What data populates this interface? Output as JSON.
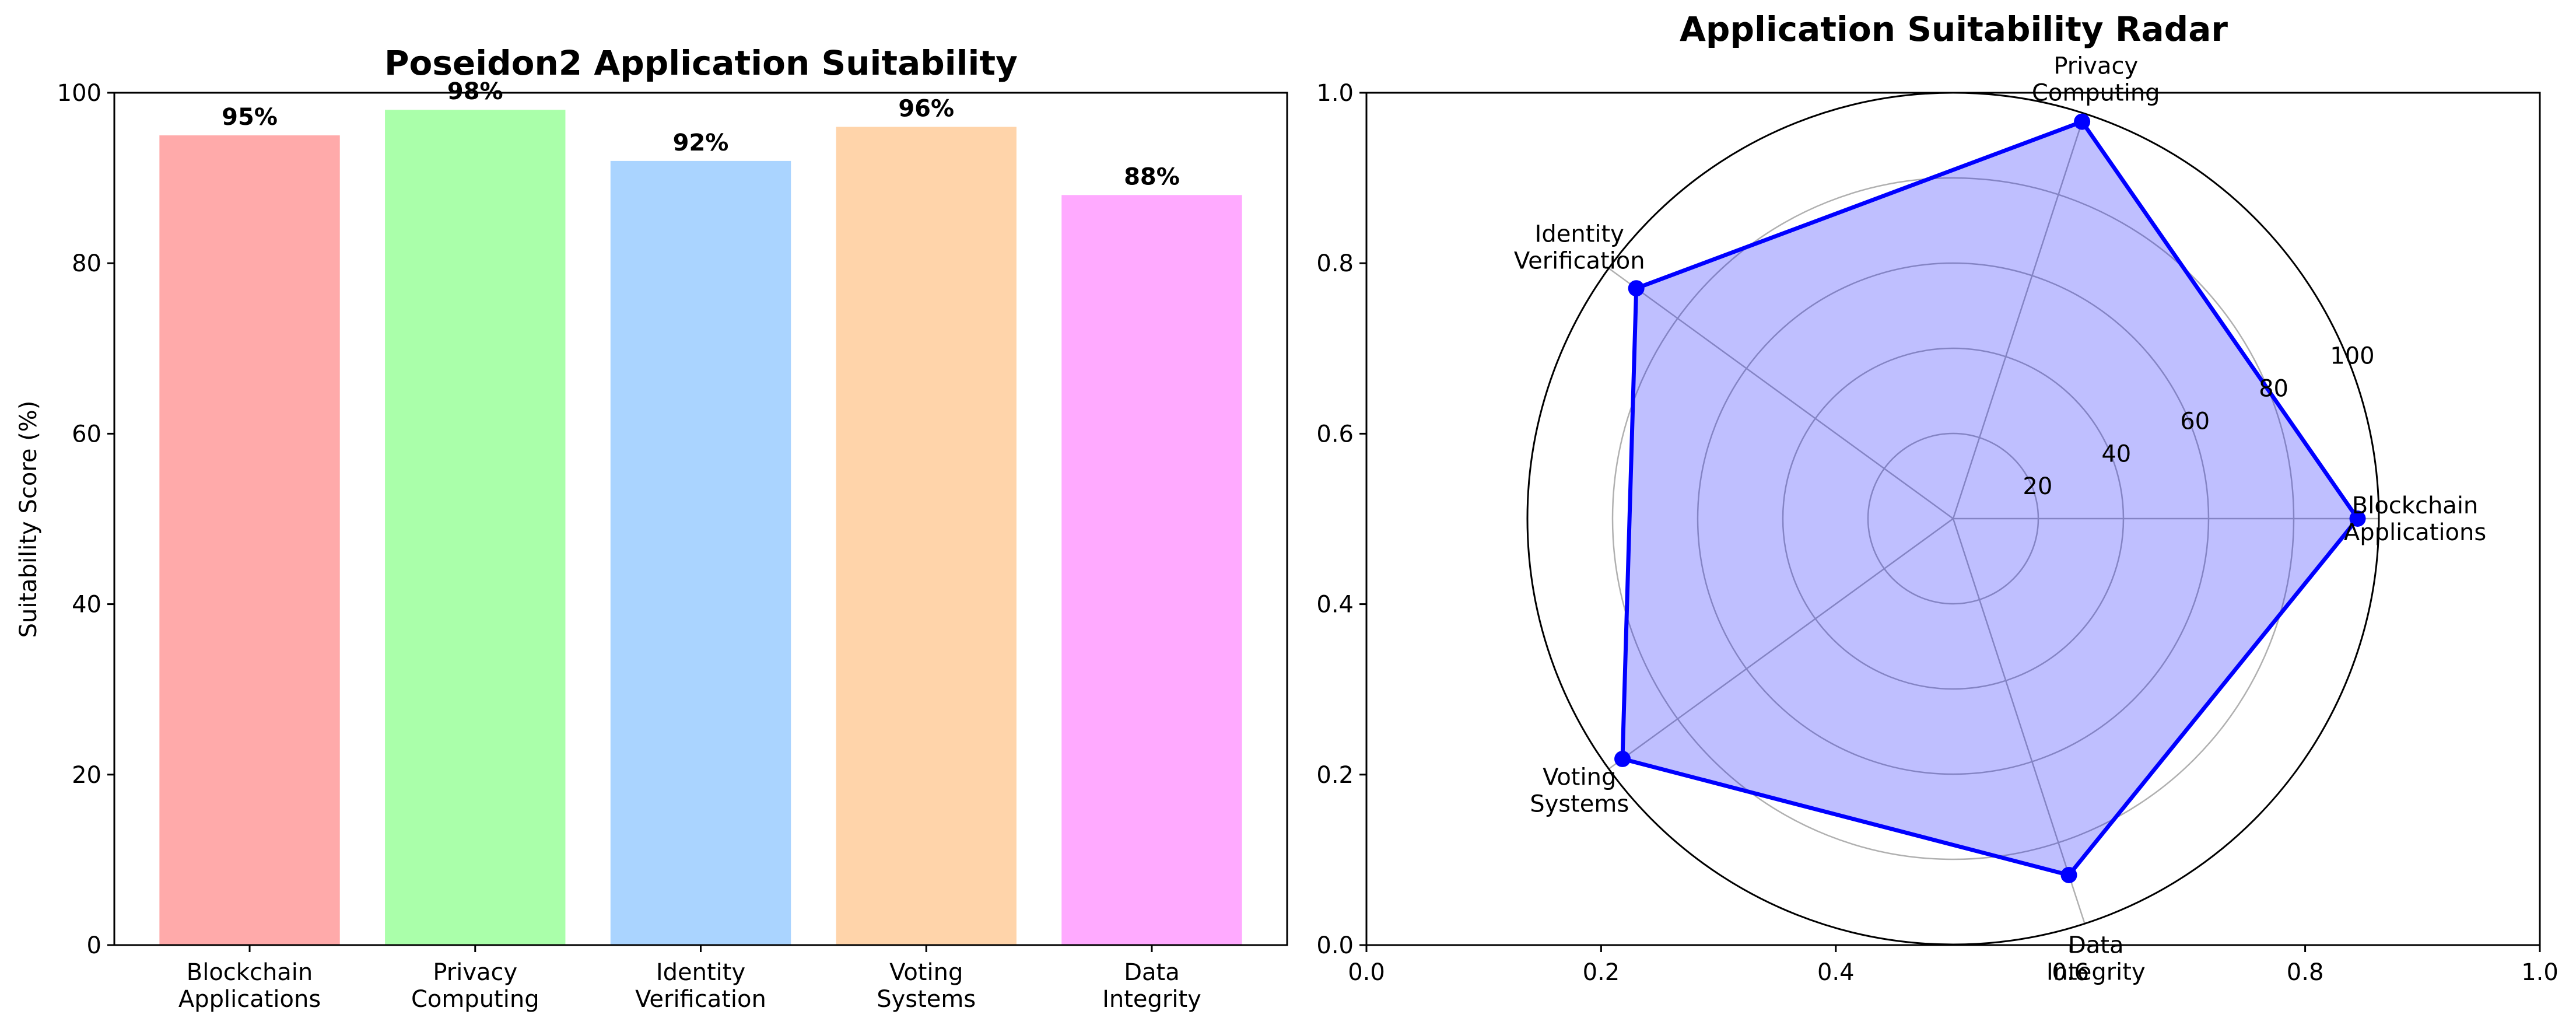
{
  "chart_data": [
    {
      "type": "bar",
      "title": "Poseidon2 Application Suitability",
      "xlabel": "",
      "ylabel": "Suitability Score (%)",
      "ylim": [
        0,
        100
      ],
      "yticks": [
        "0",
        "20",
        "40",
        "60",
        "80",
        "100"
      ],
      "categories": [
        [
          "Blockchain",
          "Applications"
        ],
        [
          "Privacy",
          "Computing"
        ],
        [
          "Identity",
          "Verification"
        ],
        [
          "Voting",
          "Systems"
        ],
        [
          "Data",
          "Integrity"
        ]
      ],
      "values": [
        95,
        98,
        92,
        96,
        88
      ],
      "value_labels": [
        "95%",
        "98%",
        "92%",
        "96%",
        "88%"
      ],
      "colors": [
        "#FFAAAA",
        "#AAFFAA",
        "#AAD4FF",
        "#FFD4AA",
        "#FFAAFF"
      ],
      "grid": false
    },
    {
      "type": "radar",
      "title": "Application Suitability Radar",
      "categories": [
        [
          "Blockchain",
          "Applications"
        ],
        [
          "Privacy",
          "Computing"
        ],
        [
          "Identity",
          "Verification"
        ],
        [
          "Voting",
          "Systems"
        ],
        [
          "Data",
          "Integrity"
        ]
      ],
      "values": [
        95,
        98,
        92,
        96,
        88
      ],
      "rlim": [
        0,
        100
      ],
      "rticks": [
        "20",
        "40",
        "60",
        "80",
        "100"
      ],
      "line_color": "#0000FF",
      "fill_color": "#0000FF",
      "fill_alpha": 0.25,
      "grid": true,
      "underlying_axes": {
        "xticks": [
          "0.0",
          "0.2",
          "0.4",
          "0.6",
          "0.8",
          "1.0"
        ],
        "yticks": [
          "0.0",
          "0.2",
          "0.4",
          "0.6",
          "0.8",
          "1.0"
        ]
      }
    }
  ]
}
